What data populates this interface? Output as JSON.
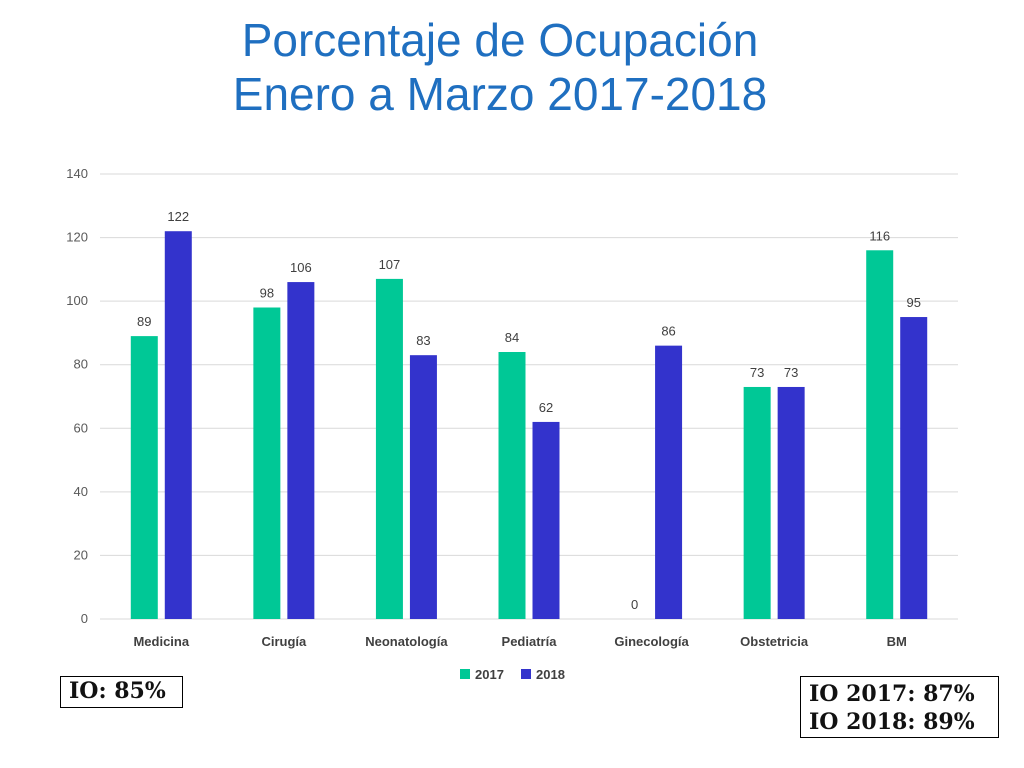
{
  "title": {
    "line1": "Porcentaje de Ocupación",
    "line2": "Enero a Marzo 2017-2018"
  },
  "info": {
    "io_overall": "IO: 85%",
    "io_2017": "IO 2017: 87%",
    "io_2018": "IO 2018: 89%"
  },
  "chart_data": {
    "type": "bar",
    "categories": [
      "Medicina",
      "Cirugía",
      "Neonatología",
      "Pediatría",
      "Ginecología",
      "Obstetricia",
      "BM"
    ],
    "series": [
      {
        "name": "2017",
        "color": "#00c896",
        "values": [
          89,
          98,
          107,
          84,
          0,
          73,
          116
        ]
      },
      {
        "name": "2018",
        "color": "#3333cc",
        "values": [
          122,
          106,
          83,
          62,
          86,
          73,
          95
        ]
      }
    ],
    "ylim": [
      0,
      140
    ],
    "yticks": [
      0,
      20,
      40,
      60,
      80,
      100,
      120,
      140
    ],
    "grid": true,
    "legend_position": "bottom",
    "title": "",
    "xlabel": "",
    "ylabel": ""
  }
}
